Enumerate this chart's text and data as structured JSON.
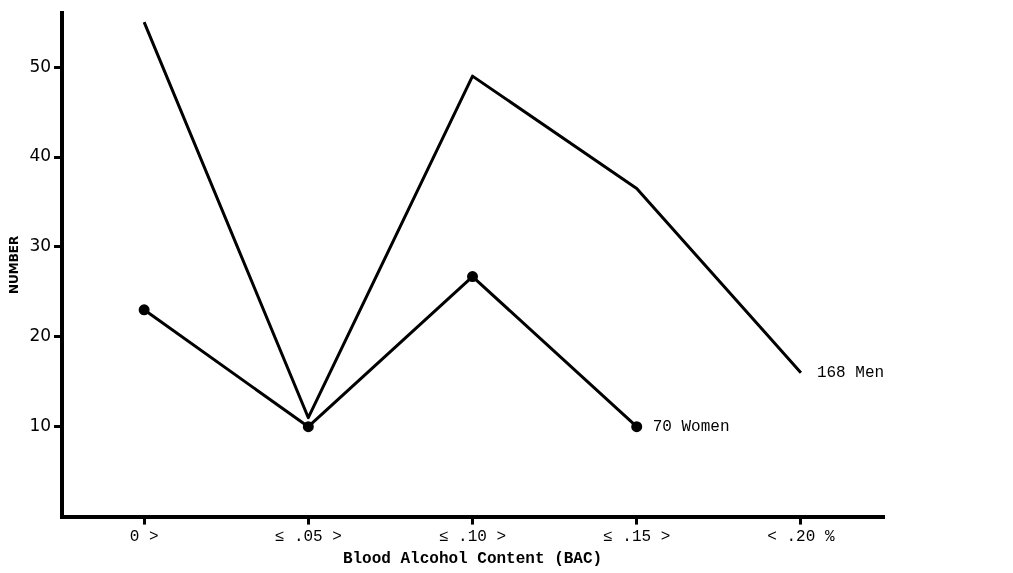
{
  "chart_data": {
    "type": "line",
    "xlabel": "Blood Alcohol Content (BAC)",
    "ylabel": "NUMBER",
    "categories": [
      "0 >",
      "≤ .05 >",
      "≤ .10 >",
      "≤ .15 >",
      "< .20 %"
    ],
    "series": [
      {
        "name": "168 Men",
        "color": "#000000",
        "marker": "none",
        "values": [
          55,
          11,
          49,
          36.5,
          16
        ]
      },
      {
        "name": "70 Women",
        "color": "#000000",
        "marker": "circle",
        "values": [
          23,
          10,
          26.7,
          10,
          null
        ]
      }
    ],
    "ylim": [
      0,
      56
    ],
    "yticks": [
      10,
      20,
      30,
      40,
      50
    ],
    "grid": false,
    "legend": false,
    "line_style": "solid"
  }
}
